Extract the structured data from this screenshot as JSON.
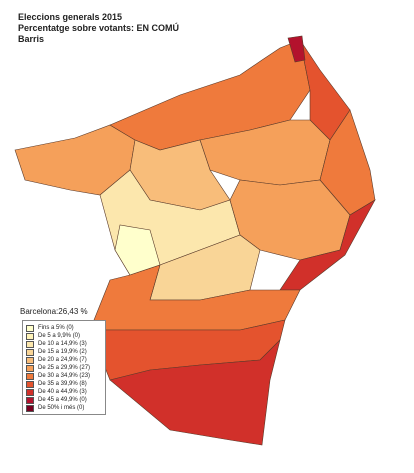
{
  "header": {
    "title": "Eleccions generals 2015",
    "subtitle": "Percentatge sobre votants: EN COMÚ",
    "level": "Barris"
  },
  "total": "Barcelona:26,43 %",
  "legend": [
    {
      "label": "Fins a 5% (0)",
      "color": "#ffffcc"
    },
    {
      "label": "De 5 a 9,9% (0)",
      "color": "#fff3b8"
    },
    {
      "label": "De 10 a 14,9% (3)",
      "color": "#fce7ad"
    },
    {
      "label": "De 15 a 19,9% (2)",
      "color": "#f9d597"
    },
    {
      "label": "De 20 a 24,9% (7)",
      "color": "#f8bd7a"
    },
    {
      "label": "De 25 a 29,9% (27)",
      "color": "#f5a05a"
    },
    {
      "label": "De 30 a 34,9% (23)",
      "color": "#ef7a3c"
    },
    {
      "label": "De 35 a 39,9% (8)",
      "color": "#e4532e"
    },
    {
      "label": "De 40 a 44,9% (3)",
      "color": "#d1302a"
    },
    {
      "label": "De 45 a 49,9% (0)",
      "color": "#b3122d"
    },
    {
      "label": "De 50% i més (0)",
      "color": "#780020"
    }
  ]
}
